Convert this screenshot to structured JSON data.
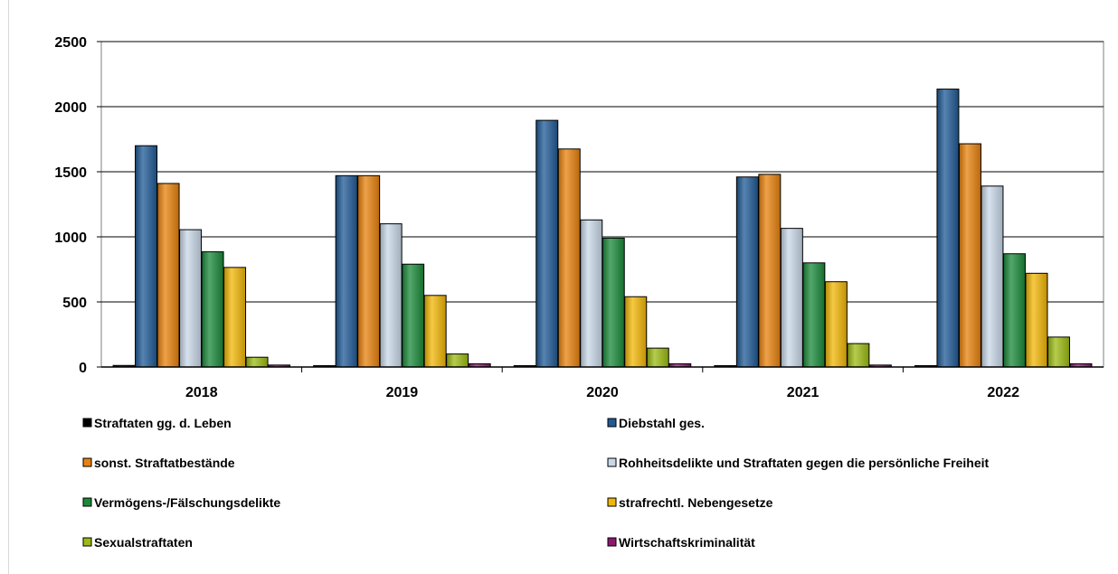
{
  "chart_data": {
    "type": "bar",
    "categories": [
      "2018",
      "2019",
      "2020",
      "2021",
      "2022"
    ],
    "ylim": [
      0,
      2500
    ],
    "yticks": [
      0,
      500,
      1000,
      1500,
      2000,
      2500
    ],
    "grid": true,
    "legend_position": "bottom",
    "series": [
      {
        "name": "Straftaten gg. d. Leben",
        "color": "#000000",
        "values": [
          12,
          8,
          8,
          8,
          8
        ]
      },
      {
        "name": "Diebstahl ges.",
        "color": "#1f5a96",
        "values": [
          1700,
          1470,
          1895,
          1460,
          2135
        ]
      },
      {
        "name": "sonst. Straftatbestände",
        "color": "#e8820c",
        "values": [
          1410,
          1470,
          1675,
          1480,
          1715
        ]
      },
      {
        "name": "Rohheitsdelikte und Straftaten gegen die persönliche Freiheit",
        "color": "#c9d8e9",
        "values": [
          1055,
          1100,
          1130,
          1065,
          1390
        ]
      },
      {
        "name": "Vermögens-/Fälschungsdelikte",
        "color": "#1a8a3a",
        "values": [
          885,
          790,
          990,
          800,
          870
        ]
      },
      {
        "name": "strafrechtl. Nebengesetze",
        "color": "#f2b705",
        "values": [
          765,
          550,
          540,
          655,
          720
        ]
      },
      {
        "name": "Sexualstraftaten",
        "color": "#9cbb12",
        "values": [
          75,
          100,
          145,
          180,
          230
        ]
      },
      {
        "name": "Wirtschaftskriminalität",
        "color": "#8a1a6e",
        "values": [
          15,
          25,
          25,
          15,
          25
        ]
      }
    ]
  }
}
